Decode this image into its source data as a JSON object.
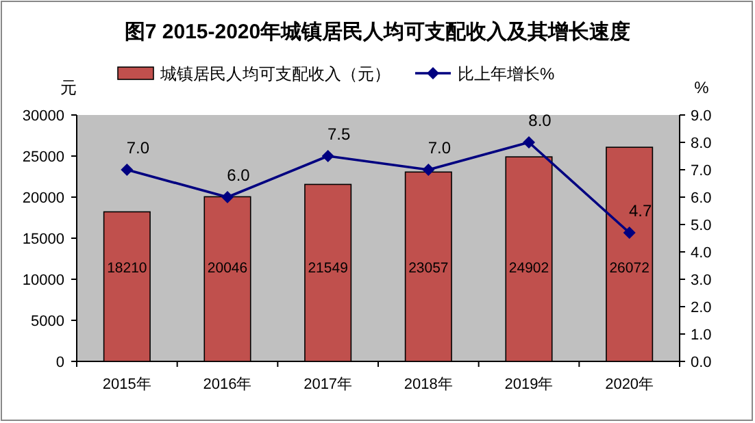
{
  "chart_data": {
    "type": "bar",
    "title": "图7  2015-2020年城镇居民人均可支配收入及其增长速度",
    "ylabel": "元",
    "y2label": "%",
    "categories": [
      "2015年",
      "2016年",
      "2017年",
      "2018年",
      "2019年",
      "2020年"
    ],
    "series": [
      {
        "name": "城镇居民人均可支配收入（元）",
        "color": "#c0504d",
        "values": [
          18210,
          20046,
          21549,
          23057,
          24902,
          26072
        ],
        "value_labels": [
          "18210",
          "20046",
          "21549",
          "23057",
          "24902",
          "26072"
        ]
      },
      {
        "name": "比上年增长%",
        "type": "line",
        "axis": "y2",
        "color": "#000080",
        "marker": "diamond",
        "values": [
          7.0,
          6.0,
          7.5,
          7.0,
          8.0,
          4.7
        ],
        "value_labels": [
          "7.0",
          "6.0",
          "7.5",
          "7.0",
          "8.0",
          "4.7"
        ]
      }
    ],
    "ylim": [
      0,
      30000
    ],
    "yticks": [
      0,
      5000,
      10000,
      15000,
      20000,
      25000,
      30000
    ],
    "y2lim": [
      0,
      9
    ],
    "y2ticks": [
      {
        "value": 0,
        "label": "0.0"
      },
      {
        "value": 1,
        "label": "1.0"
      },
      {
        "value": 2,
        "label": "2.0"
      },
      {
        "value": 3,
        "label": "3.0"
      },
      {
        "value": 4,
        "label": "4.0"
      },
      {
        "value": 5,
        "label": "5.0"
      },
      {
        "value": 6,
        "label": "6.0"
      },
      {
        "value": 7,
        "label": "7.0"
      },
      {
        "value": 8,
        "label": "8.0"
      },
      {
        "value": 9,
        "label": "9.0"
      }
    ],
    "grid": false,
    "legend": "top"
  }
}
